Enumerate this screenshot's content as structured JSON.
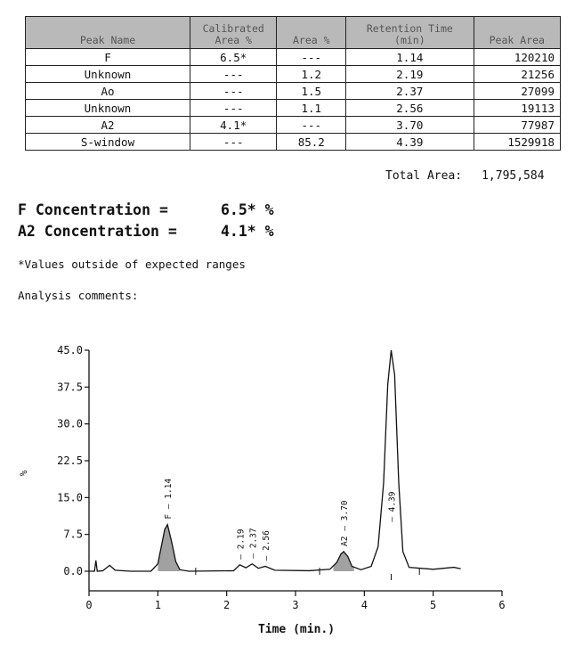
{
  "table": {
    "headers": [
      "Peak Name",
      "Calibrated Area %",
      "Area %",
      "Retention Time (min)",
      "Peak Area"
    ],
    "rows": [
      [
        "F",
        "6.5*",
        "---",
        "1.14",
        "120210"
      ],
      [
        "Unknown",
        "---",
        "1.2",
        "2.19",
        "21256"
      ],
      [
        "Ao",
        "---",
        "1.5",
        "2.37",
        "27099"
      ],
      [
        "Unknown",
        "---",
        "1.1",
        "2.56",
        "19113"
      ],
      [
        "A2",
        "4.1*",
        "---",
        "3.70",
        "77987"
      ],
      [
        "S-window",
        "---",
        "85.2",
        "4.39",
        "1529918"
      ]
    ]
  },
  "total_area": {
    "label": "Total Area:",
    "value": "1,795,584"
  },
  "concentrations": [
    {
      "label": "F Concentration =",
      "value": "6.5* %"
    },
    {
      "label": "A2 Concentration =",
      "value": "4.1* %"
    }
  ],
  "footnote": "*Values outside of expected ranges",
  "comments_label": "Analysis comments:",
  "chart_data": {
    "type": "line",
    "xlabel": "Time (min.)",
    "ylabel": "%",
    "xlim": [
      0,
      6
    ],
    "ylim": [
      0,
      45
    ],
    "xticks": [
      0,
      1,
      2,
      3,
      4,
      5,
      6
    ],
    "yticks": [
      "0.0",
      "7.5",
      "15.0",
      "22.5",
      "30.0",
      "37.5",
      "45.0"
    ],
    "peaks": [
      {
        "label": "F",
        "time": "1.14",
        "t": 1.14,
        "height": 9.5
      },
      {
        "label": "",
        "time": "2.19",
        "t": 2.19,
        "height": 1.3
      },
      {
        "label": "",
        "time": "2.37",
        "t": 2.37,
        "height": 1.5
      },
      {
        "label": "",
        "time": "2.56",
        "t": 2.56,
        "height": 1.0
      },
      {
        "label": "A2",
        "time": "3.70",
        "t": 3.7,
        "height": 4.0
      },
      {
        "label": "",
        "time": "4.39",
        "t": 4.39,
        "height": 45
      }
    ],
    "trace": [
      [
        0.0,
        0.0
      ],
      [
        0.08,
        0.0
      ],
      [
        0.1,
        2.2
      ],
      [
        0.12,
        0.0
      ],
      [
        0.2,
        0.1
      ],
      [
        0.3,
        1.2
      ],
      [
        0.38,
        0.2
      ],
      [
        0.6,
        0.0
      ],
      [
        0.9,
        0.0
      ],
      [
        1.0,
        1.5
      ],
      [
        1.05,
        5.0
      ],
      [
        1.1,
        8.5
      ],
      [
        1.14,
        9.5
      ],
      [
        1.2,
        6.0
      ],
      [
        1.26,
        2.0
      ],
      [
        1.32,
        0.3
      ],
      [
        1.45,
        0.0
      ],
      [
        2.1,
        0.1
      ],
      [
        2.19,
        1.3
      ],
      [
        2.28,
        0.7
      ],
      [
        2.37,
        1.5
      ],
      [
        2.46,
        0.6
      ],
      [
        2.56,
        1.0
      ],
      [
        2.7,
        0.2
      ],
      [
        3.2,
        0.1
      ],
      [
        3.5,
        0.4
      ],
      [
        3.6,
        1.8
      ],
      [
        3.66,
        3.5
      ],
      [
        3.7,
        4.0
      ],
      [
        3.76,
        3.0
      ],
      [
        3.82,
        1.0
      ],
      [
        3.95,
        0.3
      ],
      [
        4.1,
        1.0
      ],
      [
        4.2,
        5.0
      ],
      [
        4.28,
        18.0
      ],
      [
        4.34,
        38.0
      ],
      [
        4.39,
        45.0
      ],
      [
        4.44,
        40.0
      ],
      [
        4.5,
        18.0
      ],
      [
        4.56,
        4.0
      ],
      [
        4.65,
        0.8
      ],
      [
        5.0,
        0.4
      ],
      [
        5.3,
        0.8
      ],
      [
        5.4,
        0.5
      ]
    ],
    "shaded": [
      [
        1.0,
        1.32
      ],
      [
        3.55,
        3.85
      ]
    ]
  }
}
